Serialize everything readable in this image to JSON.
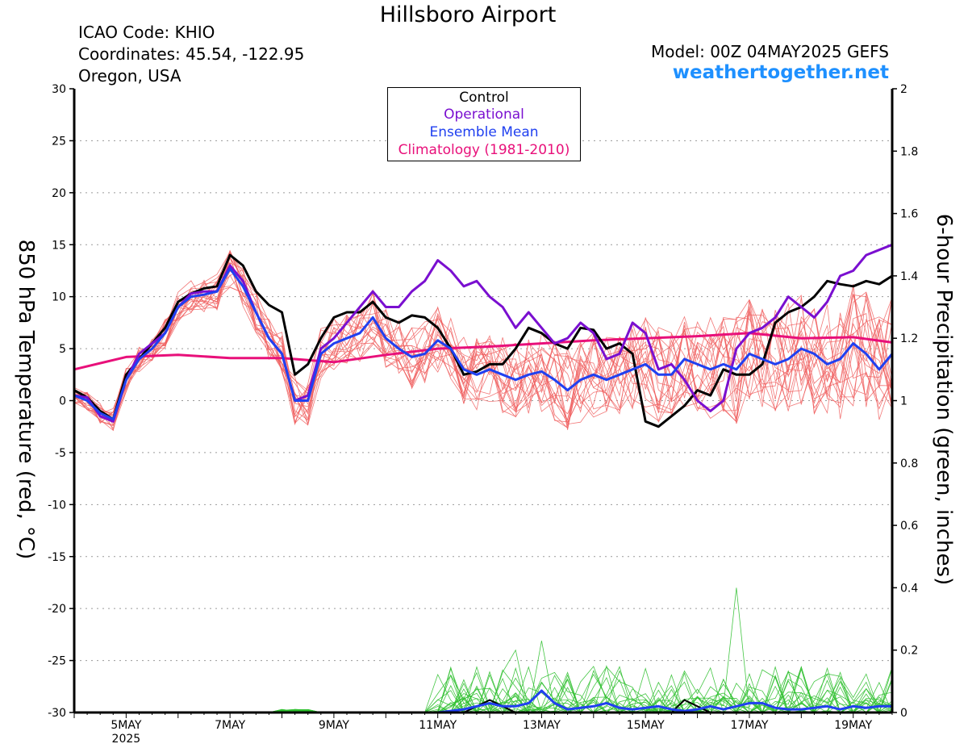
{
  "header": {
    "title": "Hillsboro Airport",
    "icao": "ICAO Code: KHIO",
    "coordinates": "Coordinates: 45.54, -122.95",
    "region": "Oregon, USA",
    "model": "Model: 00Z 04MAY2025 GEFS",
    "site": "weathertogether.net"
  },
  "legend": {
    "control": "Control",
    "operational": "Operational",
    "ensemble_mean": "Ensemble Mean",
    "climatology": "Climatology (1981-2010)"
  },
  "colors": {
    "control": "#000000",
    "operational": "#7a0fd0",
    "ensemble_mean": "#2040f0",
    "climatology": "#e8107a",
    "members_temp": "#f06060",
    "members_precip": "#30c030",
    "site": "#1e90ff"
  },
  "chart_data": {
    "type": "line",
    "ylabel": "850 hPa Temperature (red, °C)",
    "y2label": "6-hour Precipitation (green, inches)",
    "ylim": [
      -30,
      30
    ],
    "y2lim": [
      0,
      2
    ],
    "yticks": [
      -30,
      -25,
      -20,
      -15,
      -10,
      -5,
      0,
      5,
      10,
      15,
      20,
      25,
      30
    ],
    "y2ticks": [
      0,
      0.2,
      0.4,
      0.6,
      0.8,
      1,
      1.2,
      1.4,
      1.6,
      1.8,
      2
    ],
    "x_unit": "days since 4 May 2025 00Z",
    "xlim": [
      0,
      15.75
    ],
    "xticks": [
      {
        "label": "5MAY",
        "sub": "2025",
        "x": 1
      },
      {
        "label": "7MAY",
        "x": 3
      },
      {
        "label": "9MAY",
        "x": 5
      },
      {
        "label": "11MAY",
        "x": 7
      },
      {
        "label": "13MAY",
        "x": 9
      },
      {
        "label": "15MAY",
        "x": 11
      },
      {
        "label": "17MAY",
        "x": 13
      },
      {
        "label": "19MAY",
        "x": 15
      }
    ],
    "grid": true,
    "legend_position": "top-center",
    "series": [
      {
        "name": "Climatology (1981-2010)",
        "color": "#e8107a",
        "width": 3,
        "x": [
          0,
          1,
          2,
          3,
          4,
          5,
          6,
          7,
          8,
          9,
          10,
          11,
          12,
          13,
          14,
          15,
          15.75
        ],
        "y": [
          3.0,
          4.2,
          4.4,
          4.1,
          4.1,
          3.7,
          4.4,
          5.0,
          5.2,
          5.5,
          5.8,
          6.0,
          6.2,
          6.5,
          6.0,
          6.1,
          5.6
        ]
      },
      {
        "name": "Control",
        "color": "#000000",
        "width": 3,
        "x": [
          0,
          0.25,
          0.5,
          0.75,
          1,
          1.25,
          1.5,
          1.75,
          2,
          2.25,
          2.5,
          2.75,
          3,
          3.25,
          3.5,
          3.75,
          4,
          4.25,
          4.5,
          4.75,
          5,
          5.25,
          5.5,
          5.75,
          6,
          6.25,
          6.5,
          6.75,
          7,
          7.25,
          7.5,
          7.75,
          8,
          8.25,
          8.5,
          8.75,
          9,
          9.25,
          9.5,
          9.75,
          10,
          10.25,
          10.5,
          10.75,
          11,
          11.25,
          11.5,
          11.75,
          12,
          12.25,
          12.5,
          12.75,
          13,
          13.25,
          13.5,
          13.75,
          14,
          14.25,
          14.5,
          14.75,
          15,
          15.25,
          15.5,
          15.75
        ],
        "y": [
          1.0,
          0.3,
          -1.0,
          -1.8,
          2.5,
          4.0,
          5.5,
          7.0,
          9.5,
          10.3,
          10.8,
          11.0,
          14.0,
          13.0,
          10.5,
          9.2,
          8.5,
          2.5,
          3.5,
          6.0,
          8.0,
          8.5,
          8.5,
          9.5,
          8.0,
          7.5,
          8.2,
          8.0,
          7.0,
          5.0,
          2.5,
          2.8,
          3.5,
          3.5,
          5.0,
          7.0,
          6.5,
          5.5,
          5.0,
          7.0,
          6.8,
          5.0,
          5.5,
          4.5,
          -2.0,
          -2.5,
          -1.5,
          -0.5,
          1.0,
          0.5,
          3.0,
          2.5,
          2.5,
          3.5,
          7.5,
          8.5,
          9.0,
          10.0,
          11.5,
          11.2,
          11.0,
          11.5,
          11.2,
          12.0
        ]
      },
      {
        "name": "Operational",
        "color": "#7a0fd0",
        "width": 3,
        "x": [
          0,
          0.25,
          0.5,
          0.75,
          1,
          1.25,
          1.5,
          1.75,
          2,
          2.25,
          2.5,
          2.75,
          3,
          3.25,
          3.5,
          3.75,
          4,
          4.25,
          4.5,
          4.75,
          5,
          5.25,
          5.5,
          5.75,
          6,
          6.25,
          6.5,
          6.75,
          7,
          7.25,
          7.5,
          7.75,
          8,
          8.25,
          8.5,
          8.75,
          9,
          9.25,
          9.5,
          9.75,
          10,
          10.25,
          10.5,
          10.75,
          11,
          11.25,
          11.5,
          11.75,
          12,
          12.25,
          12.5,
          12.75,
          13,
          13.25,
          13.5,
          13.75,
          14,
          14.25,
          14.5,
          14.75,
          15,
          15.25,
          15.5,
          15.75
        ],
        "y": [
          0.5,
          0.3,
          -1.5,
          -2.0,
          2.0,
          4.5,
          5.5,
          6.5,
          9.0,
          10.3,
          10.5,
          10.5,
          13.0,
          11.5,
          8.5,
          6.0,
          4.5,
          0.0,
          0.5,
          5.0,
          6.0,
          7.5,
          9.0,
          10.5,
          9.0,
          9.0,
          10.5,
          11.5,
          13.5,
          12.5,
          11.0,
          11.5,
          10.0,
          9.0,
          7.0,
          8.5,
          7.0,
          5.5,
          6.0,
          7.5,
          6.5,
          4.0,
          4.5,
          7.5,
          6.5,
          3.0,
          3.5,
          2.0,
          0.0,
          -1.0,
          0.0,
          5.0,
          6.5,
          7.0,
          8.0,
          10.0,
          9.0,
          8.0,
          9.5,
          12.0,
          12.5,
          14.0,
          14.5,
          15.0
        ]
      },
      {
        "name": "Ensemble Mean",
        "color": "#2040f0",
        "width": 3,
        "x": [
          0,
          0.25,
          0.5,
          0.75,
          1,
          1.25,
          1.5,
          1.75,
          2,
          2.25,
          2.5,
          2.75,
          3,
          3.25,
          3.5,
          3.75,
          4,
          4.25,
          4.5,
          4.75,
          5,
          5.25,
          5.5,
          5.75,
          6,
          6.25,
          6.5,
          6.75,
          7,
          7.25,
          7.5,
          7.75,
          8,
          8.25,
          8.5,
          8.75,
          9,
          9.25,
          9.5,
          9.75,
          10,
          10.25,
          10.5,
          10.75,
          11,
          11.25,
          11.5,
          11.75,
          12,
          12.25,
          12.5,
          12.75,
          13,
          13.25,
          13.5,
          13.75,
          14,
          14.25,
          14.5,
          14.75,
          15,
          15.25,
          15.5,
          15.75
        ],
        "y": [
          0.5,
          0.0,
          -1.2,
          -1.8,
          2.0,
          4.0,
          5.0,
          6.5,
          9.0,
          10.0,
          10.2,
          10.5,
          12.7,
          11.0,
          8.5,
          6.0,
          4.5,
          0.0,
          0.0,
          4.5,
          5.5,
          6.0,
          6.5,
          8.0,
          6.0,
          5.0,
          4.2,
          4.5,
          5.8,
          5.0,
          3.0,
          2.5,
          3.0,
          2.5,
          2.0,
          2.5,
          2.8,
          2.0,
          1.0,
          2.0,
          2.5,
          2.0,
          2.5,
          3.0,
          3.5,
          2.5,
          2.5,
          4.0,
          3.5,
          3.0,
          3.5,
          3.0,
          4.5,
          4.0,
          3.5,
          4.0,
          5.0,
          4.5,
          3.5,
          4.0,
          5.5,
          4.5,
          3.0,
          4.5
        ]
      }
    ],
    "precip_series": [
      {
        "name": "Control precipitation",
        "color": "#000000",
        "width": 2,
        "x": [
          0,
          1,
          2,
          3,
          4,
          5,
          6,
          7,
          7.25,
          7.5,
          7.75,
          8,
          8.25,
          8.5,
          9,
          10,
          10.5,
          11,
          11.25,
          11.5,
          11.75,
          12,
          12.25,
          12.5,
          13,
          14,
          15,
          15.75
        ],
        "y": [
          0,
          0,
          0,
          0,
          0,
          0,
          0,
          0,
          0.0,
          0.0,
          0.02,
          0.04,
          0.02,
          0.0,
          0,
          0,
          0.0,
          0.0,
          0.0,
          0.0,
          0.04,
          0.02,
          0.0,
          0,
          0,
          0,
          0,
          0
        ]
      },
      {
        "name": "Ensemble mean precipitation",
        "color": "#2040f0",
        "width": 3,
        "x": [
          0,
          1,
          2,
          3,
          4,
          5,
          6,
          7,
          7.25,
          7.5,
          7.75,
          8,
          8.25,
          8.5,
          8.75,
          9,
          9.25,
          9.5,
          9.75,
          10,
          10.25,
          10.5,
          10.75,
          11,
          11.25,
          11.5,
          11.75,
          12,
          12.25,
          12.5,
          12.75,
          13,
          13.25,
          13.5,
          13.75,
          14,
          14.25,
          14.5,
          14.75,
          15,
          15.25,
          15.5,
          15.75
        ],
        "y": [
          0,
          0,
          0,
          0,
          0,
          0,
          0,
          0,
          0.005,
          0.01,
          0.02,
          0.03,
          0.02,
          0.02,
          0.03,
          0.07,
          0.03,
          0.01,
          0.015,
          0.02,
          0.03,
          0.015,
          0.01,
          0.015,
          0.02,
          0.01,
          0.005,
          0.01,
          0.02,
          0.01,
          0.02,
          0.03,
          0.03,
          0.015,
          0.01,
          0.01,
          0.015,
          0.02,
          0.01,
          0.02,
          0.015,
          0.02,
          0.02
        ]
      }
    ]
  }
}
